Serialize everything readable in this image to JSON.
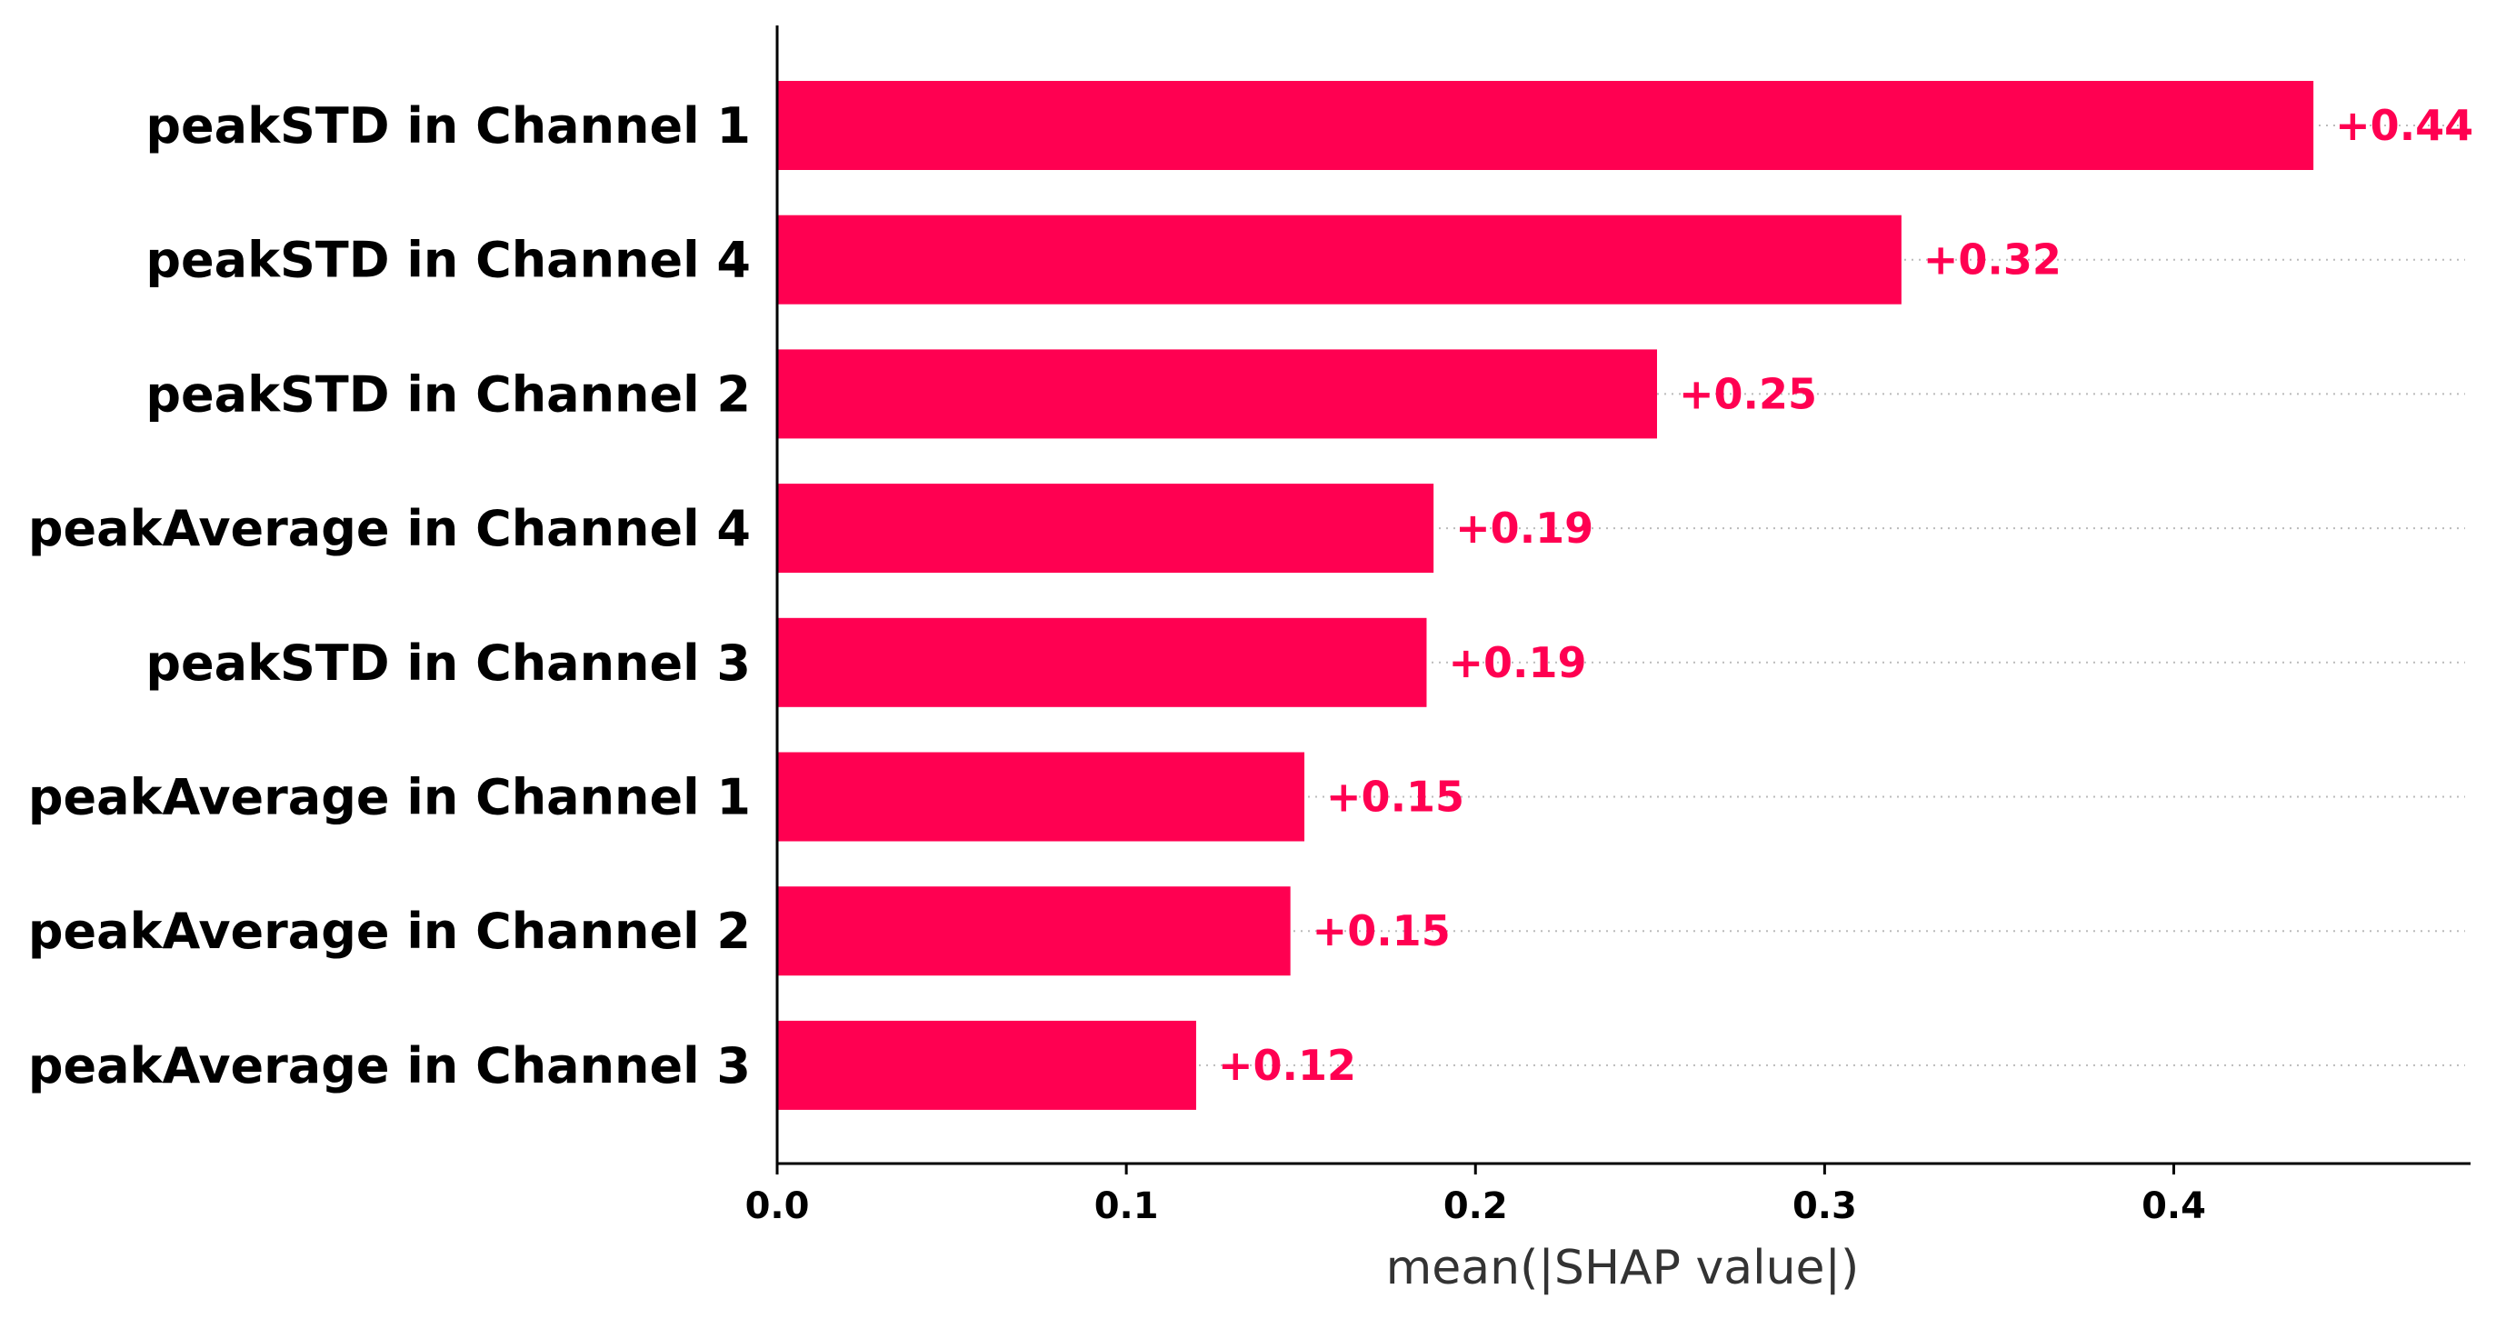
{
  "chart_data": {
    "type": "bar",
    "orientation": "horizontal",
    "categories": [
      "peakSTD in Channel 1",
      "peakSTD in Channel 4",
      "peakSTD in Channel 2",
      "peakAverage in Channel 4",
      "peakSTD in Channel 3",
      "peakAverage in Channel 1",
      "peakAverage in Channel 2",
      "peakAverage in Channel 3"
    ],
    "values": [
      0.44,
      0.322,
      0.252,
      0.188,
      0.186,
      0.151,
      0.147,
      0.12
    ],
    "value_labels": [
      "+0.44",
      "+0.32",
      "+0.25",
      "+0.19",
      "+0.19",
      "+0.15",
      "+0.15",
      "+0.12"
    ],
    "xlabel": "mean(|SHAP value|)",
    "ylabel": "",
    "title": "",
    "xlim": [
      0,
      0.485
    ],
    "xticks": [
      0.0,
      0.1,
      0.2,
      0.3,
      0.4
    ],
    "xtick_labels": [
      "0.0",
      "0.1",
      "0.2",
      "0.3",
      "0.4"
    ],
    "grid": "dotted horizontal guide lines per bar",
    "legend": "none",
    "colors": {
      "bar": "#ff0051",
      "value_label": "#ff0051",
      "axis": "#000000",
      "guide": "#bbbbbb"
    }
  }
}
